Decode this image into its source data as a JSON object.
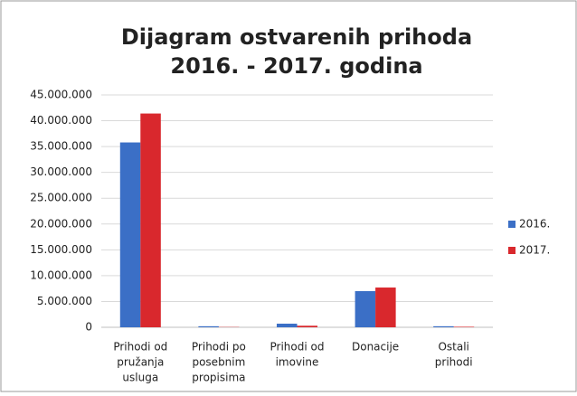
{
  "chart_data": {
    "type": "bar",
    "title": [
      "Dijagram ostvarenih prihoda",
      "2016. - 2017. godina"
    ],
    "categories": [
      [
        "Prihodi od",
        "pružanja",
        "usluga"
      ],
      [
        "Prihodi po",
        "posebnim",
        "propisima"
      ],
      [
        "Prihodi od",
        "imovine"
      ],
      [
        "Donacije"
      ],
      [
        "Ostali",
        "prihodi"
      ]
    ],
    "series": [
      {
        "name": "2016.",
        "color": "#3b6fc6",
        "values": [
          35800000,
          200000,
          700000,
          7000000,
          200000
        ]
      },
      {
        "name": "2017.",
        "color": "#d9282d",
        "values": [
          41400000,
          50000,
          300000,
          7700000,
          100000
        ]
      }
    ],
    "ylim": [
      0,
      45000000
    ],
    "yticks": [
      0,
      {
        "value": 5000000,
        "label": "5.000.000"
      },
      {
        "value": 10000000,
        "label": "10.000.000"
      },
      {
        "value": 15000000,
        "label": "15.000.000"
      },
      {
        "value": 20000000,
        "label": "20.000.000"
      },
      {
        "value": 25000000,
        "label": "25.000.000"
      },
      {
        "value": 30000000,
        "label": "30.000.000"
      },
      {
        "value": 35000000,
        "label": "35.000.000"
      },
      {
        "value": 40000000,
        "label": "40.000.000"
      },
      {
        "value": 45000000,
        "label": "45.000.000"
      }
    ],
    "grid": true,
    "legend": "right"
  }
}
